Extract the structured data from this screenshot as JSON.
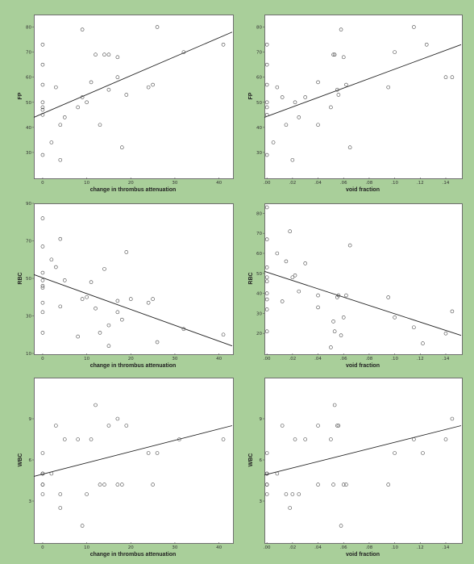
{
  "chart_data": [
    {
      "type": "scatter",
      "ylabel": "FP",
      "xlabel": "change in thrombus attenuation",
      "xlim": [
        -2,
        43
      ],
      "ylim": [
        20,
        85
      ],
      "xticks": [
        0,
        10,
        20,
        30,
        40
      ],
      "yticks": [
        30,
        40,
        50,
        60,
        70,
        80
      ],
      "trend": {
        "x": [
          -2,
          43
        ],
        "y": [
          44,
          78
        ]
      },
      "x": [
        0,
        0,
        0,
        0,
        0,
        0,
        0,
        0,
        2,
        3,
        4,
        4,
        5,
        8,
        9,
        9,
        10,
        11,
        12,
        13,
        14,
        15,
        15,
        17,
        17,
        18,
        19,
        24,
        25,
        26,
        32,
        41
      ],
      "y": [
        29,
        45,
        48,
        50,
        57,
        65,
        73,
        47,
        34,
        56,
        41,
        27,
        44,
        48,
        79,
        52,
        50,
        58,
        69,
        41,
        69,
        55,
        69,
        60,
        68,
        32,
        53,
        56,
        57,
        80,
        70,
        73
      ]
    },
    {
      "type": "scatter",
      "ylabel": "FP",
      "xlabel": "void fraction",
      "xlim": [
        -0.002,
        0.152
      ],
      "ylim": [
        20,
        85
      ],
      "xticks": [
        0,
        0.02,
        0.04,
        0.06,
        0.08,
        0.1,
        0.12,
        0.14
      ],
      "xticklabels": [
        ".00",
        ".02",
        ".04",
        ".06",
        ".08",
        ".10",
        ".12",
        ".14"
      ],
      "yticks": [
        30,
        40,
        50,
        60,
        70,
        80
      ],
      "trend": {
        "x": [
          -0.002,
          0.152
        ],
        "y": [
          44,
          73
        ]
      },
      "x": [
        0,
        0,
        0,
        0,
        0,
        0,
        0,
        0.005,
        0.008,
        0.012,
        0.015,
        0.02,
        0.022,
        0.025,
        0.03,
        0.04,
        0.04,
        0.05,
        0.052,
        0.053,
        0.055,
        0.056,
        0.058,
        0.06,
        0.062,
        0.065,
        0.095,
        0.1,
        0.115,
        0.125,
        0.14,
        0.145
      ],
      "y": [
        29,
        45,
        48,
        50,
        57,
        65,
        73,
        34,
        56,
        52,
        41,
        27,
        50,
        44,
        52,
        41,
        58,
        48,
        69,
        69,
        55,
        53,
        79,
        68,
        57,
        32,
        56,
        70,
        80,
        73,
        60,
        60
      ]
    },
    {
      "type": "scatter",
      "ylabel": "RBC",
      "xlabel": "change in thrombus attenuation",
      "xlim": [
        -2,
        43
      ],
      "ylim": [
        10,
        90
      ],
      "xticks": [
        0,
        10,
        20,
        30,
        40
      ],
      "yticks": [
        10,
        30,
        50,
        70,
        90
      ],
      "yticklabels": [
        "10",
        "30",
        "50",
        "70",
        "90"
      ],
      "trend": {
        "x": [
          -2,
          43
        ],
        "y": [
          52,
          14
        ]
      },
      "x": [
        0,
        0,
        0,
        0,
        0,
        0,
        0,
        0,
        0,
        2,
        3,
        4,
        4,
        5,
        8,
        9,
        10,
        11,
        12,
        13,
        14,
        15,
        15,
        17,
        17,
        18,
        19,
        20,
        24,
        25,
        26,
        32,
        41
      ],
      "y": [
        21,
        32,
        37,
        45,
        49,
        53,
        67,
        82,
        46,
        60,
        56,
        71,
        35,
        49,
        19,
        39,
        40,
        48,
        34,
        21,
        55,
        25,
        14,
        38,
        32,
        28,
        64,
        39,
        37,
        39,
        16,
        23,
        20
      ]
    },
    {
      "type": "scatter",
      "ylabel": "RBC",
      "xlabel": "void fraction",
      "xlim": [
        -0.002,
        0.152
      ],
      "ylim": [
        10,
        85
      ],
      "xticks": [
        0,
        0.02,
        0.04,
        0.06,
        0.08,
        0.1,
        0.12,
        0.14
      ],
      "xticklabels": [
        ".00",
        ".02",
        ".04",
        ".06",
        ".08",
        ".10",
        ".12",
        ".14"
      ],
      "yticks": [
        20,
        30,
        40,
        50,
        60,
        70,
        80
      ],
      "trend": {
        "x": [
          -0.002,
          0.152
        ],
        "y": [
          51,
          19
        ]
      },
      "x": [
        0,
        0,
        0,
        0,
        0,
        0,
        0,
        0,
        0,
        0.008,
        0.012,
        0.015,
        0.018,
        0.02,
        0.022,
        0.025,
        0.03,
        0.04,
        0.04,
        0.05,
        0.052,
        0.053,
        0.055,
        0.056,
        0.058,
        0.06,
        0.062,
        0.065,
        0.095,
        0.1,
        0.115,
        0.122,
        0.14,
        0.145
      ],
      "y": [
        21,
        32,
        37,
        46,
        48,
        53,
        67,
        83,
        40,
        60,
        36,
        56,
        71,
        48,
        49,
        41,
        55,
        33,
        39,
        13,
        26,
        21,
        38,
        39,
        19,
        28,
        39,
        64,
        38,
        28,
        23,
        15,
        20,
        31
      ]
    },
    {
      "type": "scatter",
      "ylabel": "WBC",
      "xlabel": "change in thrombus attenuation",
      "xlim": [
        -2,
        43
      ],
      "ylim": [
        0,
        12
      ],
      "xticks": [
        0,
        10,
        20,
        30,
        40
      ],
      "yticks": [
        3,
        6,
        9
      ],
      "trend": {
        "x": [
          -2,
          43
        ],
        "y": [
          4.8,
          8.5
        ]
      },
      "x": [
        0,
        0,
        0,
        0,
        0,
        0,
        0,
        2,
        3,
        4,
        4,
        5,
        8,
        9,
        10,
        11,
        12,
        13,
        14,
        15,
        17,
        17,
        18,
        19,
        24,
        25,
        26,
        31,
        41
      ],
      "y": [
        3.5,
        4.2,
        4.2,
        5,
        5,
        5,
        6.5,
        5,
        8.5,
        2.5,
        3.5,
        7.5,
        7.5,
        1.2,
        3.5,
        7.5,
        10,
        4.2,
        4.2,
        8.5,
        9,
        4.2,
        4.2,
        8.5,
        6.5,
        4.2,
        6.5,
        7.5,
        7.5
      ]
    },
    {
      "type": "scatter",
      "ylabel": "WBC",
      "xlabel": "void fraction",
      "xlim": [
        -0.002,
        0.152
      ],
      "ylim": [
        0,
        12
      ],
      "xticks": [
        0,
        0.02,
        0.04,
        0.06,
        0.08,
        0.1,
        0.12,
        0.14
      ],
      "xticklabels": [
        ".00",
        ".02",
        ".04",
        ".06",
        ".08",
        ".10",
        ".12",
        ".14"
      ],
      "yticks": [
        3,
        6,
        9
      ],
      "trend": {
        "x": [
          -0.002,
          0.152
        ],
        "y": [
          4.9,
          8.5
        ]
      },
      "x": [
        0,
        0,
        0,
        0,
        0,
        0,
        0,
        0.008,
        0.012,
        0.015,
        0.018,
        0.02,
        0.022,
        0.025,
        0.03,
        0.04,
        0.04,
        0.05,
        0.052,
        0.053,
        0.055,
        0.056,
        0.058,
        0.06,
        0.062,
        0.095,
        0.1,
        0.115,
        0.122,
        0.14,
        0.145
      ],
      "y": [
        3.5,
        4.2,
        4.2,
        5,
        5,
        5,
        6.5,
        5,
        8.5,
        3.5,
        2.5,
        3.5,
        7.5,
        3.5,
        7.5,
        4.2,
        8.5,
        7.5,
        4.2,
        10,
        8.5,
        8.5,
        1.2,
        4.2,
        4.2,
        4.2,
        6.5,
        7.5,
        6.5,
        7.5,
        9
      ]
    }
  ]
}
